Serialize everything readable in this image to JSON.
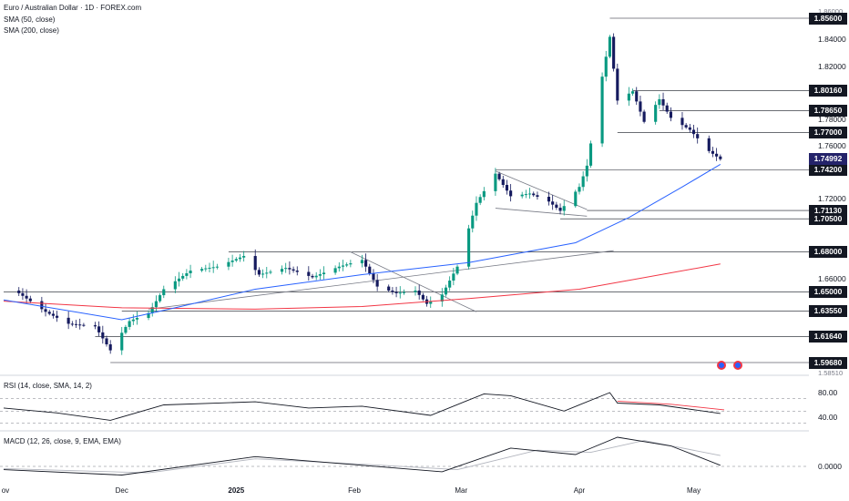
{
  "legend": {
    "title": "Euro / Australian Dollar · 1D · FOREX.com",
    "sma50": "SMA (50, close)",
    "sma200": "SMA (200, close)"
  },
  "panes": {
    "rsi_label": "RSI (14, close, SMA, 14, 2)",
    "macd_label": "MACD (12, 26, close, 9, EMA, EMA)"
  },
  "colors": {
    "up": "#089981",
    "down": "#151a5e",
    "sma50": "#2962ff",
    "sma200": "#f23645",
    "level_line": "#131722",
    "tag_bg": "#131722",
    "current_tag_bg": "#24236a",
    "rsi_line": "#131722",
    "rsi_ma": "#f23645",
    "macd_line": "#131722",
    "signal_line": "#b2b5be"
  },
  "price_axis": {
    "ticks": [
      1.84,
      1.82,
      1.78,
      1.76,
      1.72,
      1.66
    ],
    "tick_labels": [
      "1.84000",
      "1.82000",
      "1.78000",
      "1.76000",
      "1.72000",
      "1.66000"
    ],
    "partial_labels": [
      "1.86000",
      "1.63000",
      "1.58510"
    ]
  },
  "level_tags": [
    {
      "value": 1.856,
      "label": "1.85600"
    },
    {
      "value": 1.8016,
      "label": "1.80160"
    },
    {
      "value": 1.7865,
      "label": "1.78650"
    },
    {
      "value": 1.77,
      "label": "1.77000"
    },
    {
      "value": 1.742,
      "label": "1.74200"
    },
    {
      "value": 1.7113,
      "label": "1.71130"
    },
    {
      "value": 1.705,
      "label": "1.70500"
    },
    {
      "value": 1.68,
      "label": "1.68000"
    },
    {
      "value": 1.65,
      "label": "1.65000"
    },
    {
      "value": 1.6355,
      "label": "1.63550"
    },
    {
      "value": 1.6164,
      "label": "1.61640"
    },
    {
      "value": 1.5968,
      "label": "1.59680"
    }
  ],
  "current_price": {
    "value": 1.74992,
    "label": "1.74992"
  },
  "rsi_axis": {
    "ticks": [
      80,
      40
    ],
    "tick_labels": [
      "80.00",
      "40.00"
    ],
    "bands": [
      70,
      50,
      30
    ]
  },
  "macd_axis": {
    "ticks": [
      0
    ],
    "tick_labels": [
      "0.0000"
    ]
  },
  "x_axis": {
    "labels": [
      {
        "text": "ov",
        "bold": false
      },
      {
        "text": "Dec",
        "bold": false
      },
      {
        "text": "2025",
        "bold": true
      },
      {
        "text": "Feb",
        "bold": false
      },
      {
        "text": "Mar",
        "bold": false
      },
      {
        "text": "Apr",
        "bold": false
      },
      {
        "text": "May",
        "bold": false
      }
    ]
  },
  "chart_data": {
    "type": "candlestick",
    "title": "Euro / Australian Dollar · 1D · FOREX.com",
    "timeframe": "1D",
    "x_range": [
      "2024-11-01",
      "2025-05-09"
    ],
    "ylim": [
      1.585,
      1.865
    ],
    "keypoints": [
      {
        "date": "2024-11-04",
        "close": 1.651
      },
      {
        "date": "2024-11-12",
        "close": 1.635
      },
      {
        "date": "2024-11-18",
        "close": 1.626
      },
      {
        "date": "2024-11-25",
        "close": 1.624
      },
      {
        "date": "2024-11-29",
        "close": 1.606
      },
      {
        "date": "2024-12-04",
        "close": 1.628
      },
      {
        "date": "2024-12-09",
        "close": 1.634
      },
      {
        "date": "2024-12-13",
        "close": 1.652
      },
      {
        "date": "2024-12-20",
        "close": 1.666
      },
      {
        "date": "2024-12-27",
        "close": 1.669
      },
      {
        "date": "2025-01-03",
        "close": 1.677
      },
      {
        "date": "2025-01-07",
        "close": 1.663
      },
      {
        "date": "2025-01-14",
        "close": 1.668
      },
      {
        "date": "2025-01-21",
        "close": 1.661
      },
      {
        "date": "2025-01-28",
        "close": 1.669
      },
      {
        "date": "2025-02-03",
        "close": 1.674
      },
      {
        "date": "2025-02-07",
        "close": 1.654
      },
      {
        "date": "2025-02-12",
        "close": 1.649
      },
      {
        "date": "2025-02-17",
        "close": 1.651
      },
      {
        "date": "2025-02-20",
        "close": 1.641
      },
      {
        "date": "2025-02-24",
        "close": 1.648
      },
      {
        "date": "2025-02-28",
        "close": 1.669
      },
      {
        "date": "2025-03-05",
        "close": 1.717
      },
      {
        "date": "2025-03-10",
        "close": 1.739
      },
      {
        "date": "2025-03-14",
        "close": 1.722
      },
      {
        "date": "2025-03-19",
        "close": 1.724
      },
      {
        "date": "2025-03-24",
        "close": 1.718
      },
      {
        "date": "2025-03-27",
        "close": 1.711
      },
      {
        "date": "2025-04-01",
        "close": 1.729
      },
      {
        "date": "2025-04-03",
        "close": 1.745
      },
      {
        "date": "2025-04-07",
        "close": 1.812
      },
      {
        "date": "2025-04-09",
        "close": 1.842
      },
      {
        "date": "2025-04-11",
        "close": 1.794
      },
      {
        "date": "2025-04-15",
        "close": 1.801
      },
      {
        "date": "2025-04-18",
        "close": 1.778
      },
      {
        "date": "2025-04-22",
        "close": 1.795
      },
      {
        "date": "2025-04-25",
        "close": 1.781
      },
      {
        "date": "2025-04-30",
        "close": 1.772
      },
      {
        "date": "2025-05-05",
        "close": 1.756
      },
      {
        "date": "2025-05-08",
        "close": 1.7499
      }
    ],
    "sma50": [
      {
        "date": "2024-11-01",
        "value": 1.644
      },
      {
        "date": "2024-12-02",
        "value": 1.629
      },
      {
        "date": "2024-12-16",
        "value": 1.638
      },
      {
        "date": "2025-01-06",
        "value": 1.652
      },
      {
        "date": "2025-02-03",
        "value": 1.663
      },
      {
        "date": "2025-03-03",
        "value": 1.672
      },
      {
        "date": "2025-03-31",
        "value": 1.687
      },
      {
        "date": "2025-04-14",
        "value": 1.706
      },
      {
        "date": "2025-04-28",
        "value": 1.729
      },
      {
        "date": "2025-05-08",
        "value": 1.746
      }
    ],
    "sma200": [
      {
        "date": "2024-11-01",
        "value": 1.643
      },
      {
        "date": "2024-12-02",
        "value": 1.638
      },
      {
        "date": "2025-01-06",
        "value": 1.637
      },
      {
        "date": "2025-02-03",
        "value": 1.639
      },
      {
        "date": "2025-03-03",
        "value": 1.645
      },
      {
        "date": "2025-04-01",
        "value": 1.652
      },
      {
        "date": "2025-05-08",
        "value": 1.671
      }
    ],
    "rsi": [
      {
        "date": "2024-11-01",
        "value": 55
      },
      {
        "date": "2024-11-15",
        "value": 47
      },
      {
        "date": "2024-11-29",
        "value": 35
      },
      {
        "date": "2024-12-13",
        "value": 60
      },
      {
        "date": "2025-01-06",
        "value": 65
      },
      {
        "date": "2025-01-20",
        "value": 55
      },
      {
        "date": "2025-02-03",
        "value": 58
      },
      {
        "date": "2025-02-21",
        "value": 43
      },
      {
        "date": "2025-03-07",
        "value": 78
      },
      {
        "date": "2025-03-14",
        "value": 75
      },
      {
        "date": "2025-03-28",
        "value": 50
      },
      {
        "date": "2025-04-09",
        "value": 80
      },
      {
        "date": "2025-04-11",
        "value": 63
      },
      {
        "date": "2025-04-22",
        "value": 60
      },
      {
        "date": "2025-05-08",
        "value": 46
      }
    ],
    "rsi_ma": [
      {
        "date": "2025-04-11",
        "value": 66
      },
      {
        "date": "2025-04-25",
        "value": 61
      },
      {
        "date": "2025-05-09",
        "value": 52
      }
    ],
    "macd": [
      {
        "date": "2024-11-01",
        "value": -0.003
      },
      {
        "date": "2024-12-02",
        "value": -0.008
      },
      {
        "date": "2025-01-06",
        "value": 0.009
      },
      {
        "date": "2025-02-03",
        "value": 0.001
      },
      {
        "date": "2025-02-24",
        "value": -0.005
      },
      {
        "date": "2025-03-14",
        "value": 0.017
      },
      {
        "date": "2025-03-31",
        "value": 0.011
      },
      {
        "date": "2025-04-11",
        "value": 0.027
      },
      {
        "date": "2025-04-25",
        "value": 0.019
      },
      {
        "date": "2025-05-08",
        "value": 0.001
      }
    ],
    "macd_signal": [
      {
        "date": "2024-11-01",
        "value": -0.002
      },
      {
        "date": "2024-12-09",
        "value": -0.006
      },
      {
        "date": "2025-01-06",
        "value": 0.007
      },
      {
        "date": "2025-02-03",
        "value": 0.002
      },
      {
        "date": "2025-02-28",
        "value": -0.003
      },
      {
        "date": "2025-03-21",
        "value": 0.015
      },
      {
        "date": "2025-04-04",
        "value": 0.013
      },
      {
        "date": "2025-04-18",
        "value": 0.024
      },
      {
        "date": "2025-05-08",
        "value": 0.01
      }
    ],
    "trendlines": [
      {
        "from": {
          "date": "2025-01-31",
          "value": 1.68
        },
        "to": {
          "date": "2025-03-05",
          "value": 1.635
        }
      },
      {
        "from": {
          "date": "2024-12-09",
          "value": 1.637
        },
        "to": {
          "date": "2025-04-10",
          "value": 1.681
        }
      },
      {
        "from": {
          "date": "2025-03-10",
          "value": 1.741
        },
        "to": {
          "date": "2025-04-03",
          "value": 1.712
        }
      },
      {
        "from": {
          "date": "2025-03-10",
          "value": 1.713
        },
        "to": {
          "date": "2025-04-03",
          "value": 1.707
        }
      }
    ],
    "level_segments": [
      {
        "value": 1.856,
        "from": "2025-04-09"
      },
      {
        "value": 1.8016,
        "from": "2025-04-15"
      },
      {
        "value": 1.7865,
        "from": "2025-04-22"
      },
      {
        "value": 1.77,
        "from": "2025-04-11"
      },
      {
        "value": 1.742,
        "from": "2025-03-10"
      },
      {
        "value": 1.7113,
        "from": "2025-04-03"
      },
      {
        "value": 1.705,
        "from": "2025-03-27"
      },
      {
        "value": 1.68,
        "from": "2024-12-30"
      },
      {
        "value": 1.65,
        "from": "2024-11-01"
      },
      {
        "value": 1.6355,
        "from": "2024-12-02"
      },
      {
        "value": 1.6164,
        "from": "2024-11-25"
      },
      {
        "value": 1.5968,
        "from": "2024-11-29"
      }
    ]
  }
}
